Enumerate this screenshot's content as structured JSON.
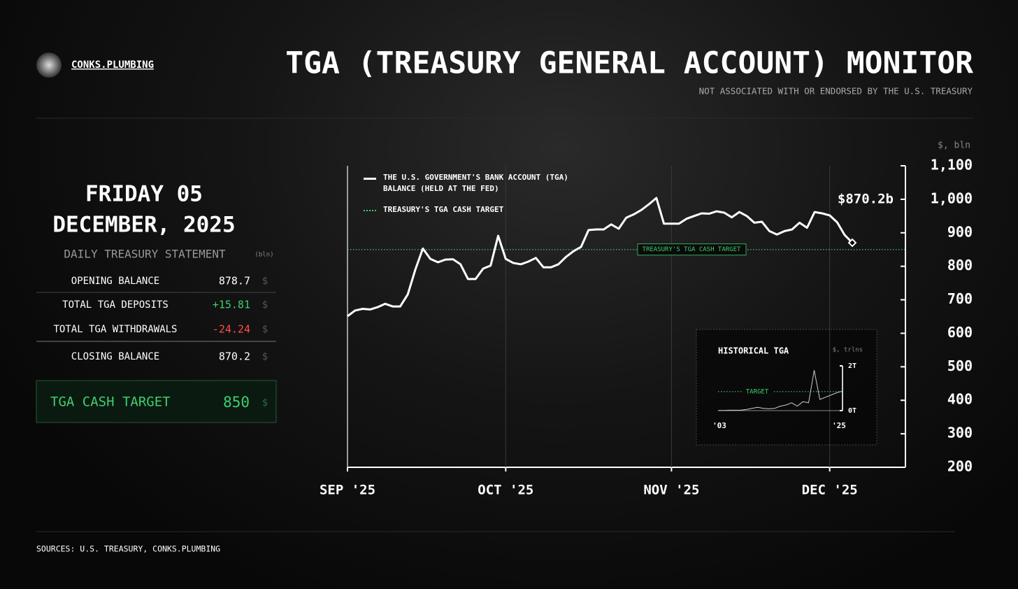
{
  "header": {
    "brand": "CONKS.PLUMBING",
    "title": "TGA (TREASURY GENERAL ACCOUNT) MONITOR",
    "subtitle": "NOT ASSOCIATED WITH OR ENDORSED BY THE U.S. TREASURY"
  },
  "panel": {
    "date_line1": "FRIDAY 05",
    "date_line2": "DECEMBER, 2025",
    "statement_title": "DAILY TREASURY STATEMENT",
    "statement_unit": "(bln)",
    "rows": [
      {
        "label": "OPENING BALANCE",
        "value": "878.7",
        "unit": "$"
      },
      {
        "label": "TOTAL TGA DEPOSITS",
        "value": "+15.81",
        "unit": "$"
      },
      {
        "label": "TOTAL TGA WITHDRAWALS",
        "value": "-24.24",
        "unit": "$"
      },
      {
        "label": "CLOSING BALANCE",
        "value": "870.2",
        "unit": "$"
      }
    ],
    "target": {
      "label": "TGA CASH TARGET",
      "value": "850",
      "unit": "$"
    }
  },
  "chart_data": [
    {
      "type": "line",
      "y_label": "$, bln",
      "categories": [
        "SEP '25",
        null,
        null,
        null,
        null,
        null,
        null,
        null,
        null,
        null,
        null,
        null,
        null,
        null,
        null,
        null,
        null,
        null,
        null,
        null,
        null,
        "OCT '25",
        null,
        null,
        null,
        null,
        null,
        null,
        null,
        null,
        null,
        null,
        null,
        null,
        null,
        null,
        null,
        null,
        null,
        null,
        null,
        null,
        null,
        "NOV '25",
        null,
        null,
        null,
        null,
        null,
        null,
        null,
        null,
        null,
        null,
        null,
        null,
        null,
        null,
        null,
        null,
        null,
        null,
        null,
        null,
        "DEC '25",
        null,
        null,
        null
      ],
      "series": [
        {
          "name": "THE U.S. GOVERNMENT'S BANK ACCOUNT (TGA) BALANCE (HELD AT THE FED)",
          "color": "#ffffff",
          "values": [
            651,
            668,
            673,
            671,
            678,
            688,
            680,
            680,
            716,
            790,
            853,
            822,
            812,
            820,
            821,
            806,
            762,
            762,
            793,
            802,
            891,
            822,
            810,
            806,
            814,
            825,
            797,
            797,
            806,
            828,
            845,
            858,
            908,
            910,
            910,
            925,
            912,
            945,
            955,
            968,
            985,
            1004,
            927,
            927,
            927,
            942,
            950,
            958,
            957,
            964,
            960,
            946,
            962,
            950,
            930,
            933,
            905,
            895,
            905,
            910,
            930,
            915,
            962,
            958,
            952,
            931,
            893,
            870.2
          ]
        }
      ],
      "target": {
        "name": "TREASURY'S TGA CASH TARGET",
        "value": 850,
        "color": "#3ecf6e"
      },
      "annotation": "$870.2b",
      "ylim": [
        200,
        1100
      ],
      "yticks": [
        200,
        300,
        400,
        500,
        600,
        700,
        800,
        900,
        {
          "value": 1000,
          "label": "1,000"
        },
        {
          "value": 1100,
          "label": "1,100"
        }
      ],
      "grid": "x"
    },
    {
      "type": "line",
      "title": "HISTORICAL TGA",
      "y_label": "$, trlns",
      "categories": [
        "'03",
        null,
        null,
        null,
        null,
        null,
        null,
        null,
        null,
        null,
        null,
        null,
        null,
        null,
        null,
        null,
        null,
        null,
        null,
        null,
        null,
        null,
        "'25"
      ],
      "series": [
        {
          "name": null,
          "color": "#cccccc",
          "values": [
            0.01,
            0.01,
            0.02,
            0.02,
            0.02,
            0.05,
            0.1,
            0.15,
            0.1,
            0.08,
            0.1,
            0.2,
            0.25,
            0.35,
            0.2,
            0.4,
            0.35,
            1.8,
            0.5,
            0.6,
            0.7,
            0.8,
            0.87
          ]
        }
      ],
      "target": {
        "name": "TARGET",
        "value": 0.85,
        "color": "#3ecf6e"
      },
      "ylim": [
        0,
        2
      ],
      "yticks": [
        {
          "value": 0,
          "label": "0T"
        },
        {
          "value": 2,
          "label": "2T"
        }
      ]
    }
  ],
  "footer": {
    "sources": "SOURCES: U.S. TREASURY, CONKS.PLUMBING"
  }
}
